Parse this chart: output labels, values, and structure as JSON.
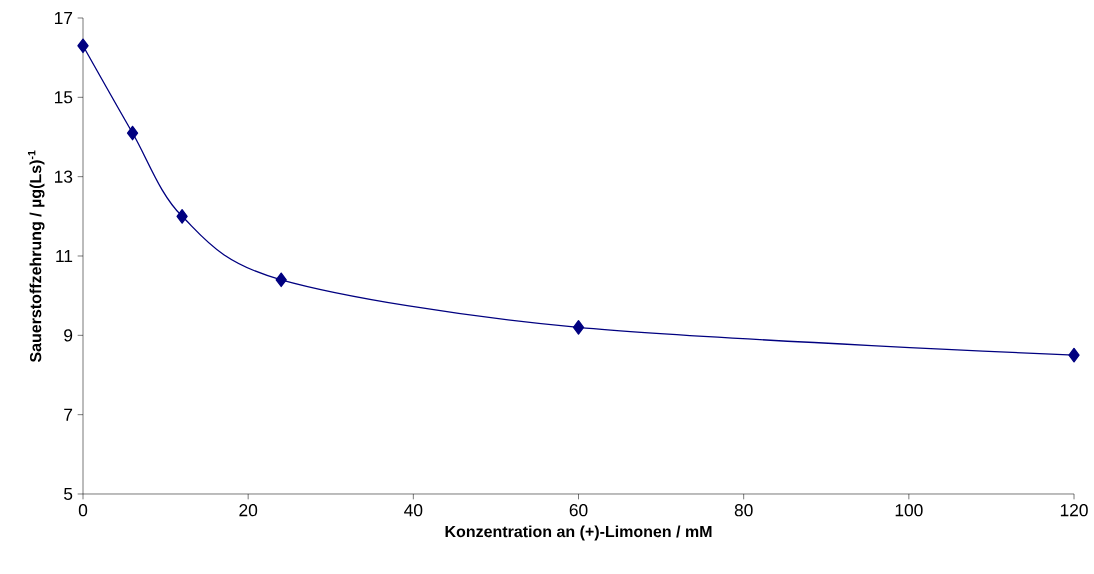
{
  "chart_data": {
    "type": "line",
    "xlabel": "Konzentration an (+)-Limonen / mM",
    "ylabel": "Sauerstoffzehrung / µg(Ls)$^{-1}$",
    "x": [
      0,
      6,
      12,
      24,
      60,
      120
    ],
    "series": [
      {
        "color": "#000080",
        "values": [
          16.3,
          14.1,
          12.0,
          10.4,
          9.2,
          8.5
        ]
      }
    ],
    "xlim": [
      0,
      120
    ],
    "xticks": [
      0,
      20,
      40,
      60,
      80,
      100,
      120
    ],
    "ylim": [
      5,
      17
    ],
    "yticks": [
      5,
      7,
      9,
      11,
      13,
      15,
      17
    ],
    "marker": "diamond",
    "line_style": "solid"
  }
}
